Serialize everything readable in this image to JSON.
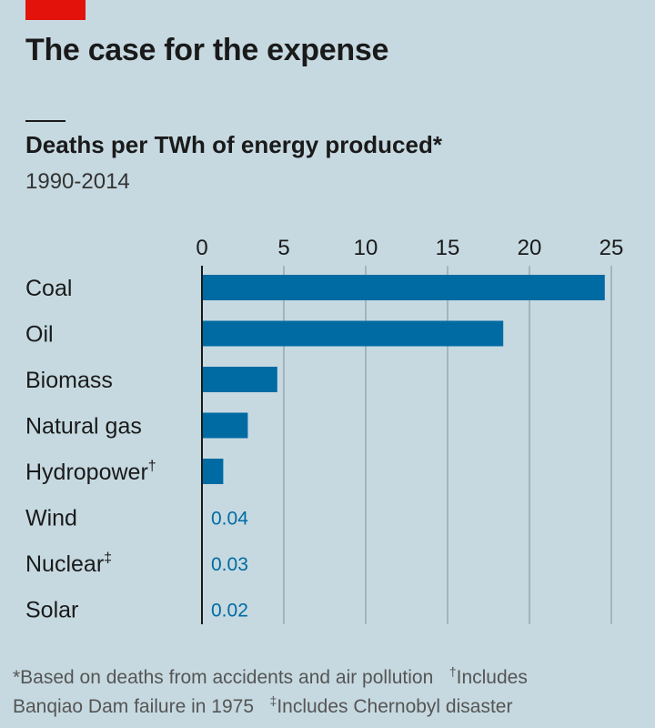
{
  "header": {
    "title": "The case for the expense",
    "subtitle": "Deaths per TWh of energy produced*",
    "period": "1990-2014"
  },
  "footnotes": {
    "line1_a": "*Based on deaths from accidents and air pollution",
    "line1_mark": "†",
    "line1_b": "Includes",
    "line2_a": "Banqiao Dam failure in 1975",
    "line2_mark": "‡",
    "line2_b": "Includes Chernobyl disaster"
  },
  "colors": {
    "bar": "#006ba2",
    "background": "#c6d9e1",
    "grid": "#9aa8ad",
    "accent": "#e3120b"
  },
  "chart_data": {
    "type": "bar",
    "orientation": "horizontal",
    "title": "Deaths per TWh of energy produced*",
    "subtitle": "1990-2014",
    "xlabel": "",
    "ylabel": "",
    "xlim": [
      0,
      25
    ],
    "xticks": [
      0,
      5,
      10,
      15,
      20,
      25
    ],
    "grid": true,
    "categories": [
      "Coal",
      "Oil",
      "Biomass",
      "Natural gas",
      "Hydropower",
      "Wind",
      "Nuclear",
      "Solar"
    ],
    "category_marks": [
      "",
      "",
      "",
      "",
      "†",
      "",
      "‡",
      ""
    ],
    "values": [
      24.6,
      18.4,
      4.6,
      2.8,
      1.3,
      0.04,
      0.03,
      0.02
    ],
    "data_labels": [
      "",
      "",
      "",
      "",
      "",
      "0.04",
      "0.03",
      "0.02"
    ]
  }
}
